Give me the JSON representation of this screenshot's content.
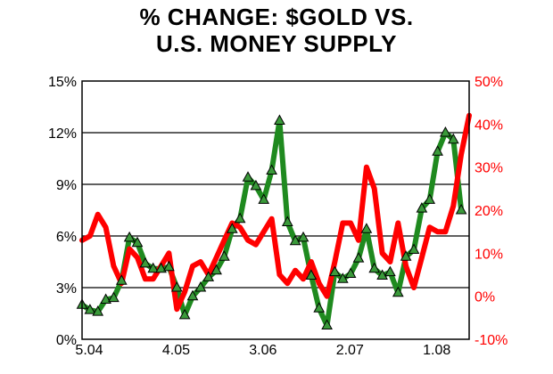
{
  "title_lines": [
    "% CHANGE: $GOLD VS.",
    "U.S. MONEY SUPPLY"
  ],
  "colors": {
    "gold": "#1f8a1f",
    "money": "#ff0000",
    "marker": "#3a9a3a",
    "axis": "#000000",
    "grid": "#000000"
  },
  "chart_data": {
    "type": "line",
    "title": "% CHANGE: $GOLD VS. U.S. MONEY SUPPLY",
    "x_tick_labels": [
      "5.04",
      "4.05",
      "3.06",
      "2.07",
      "1.08"
    ],
    "x_tick_index": [
      0,
      11,
      22,
      33,
      44
    ],
    "x_range": [
      0,
      49
    ],
    "y_left": {
      "ticks": [
        "0%",
        "3%",
        "6%",
        "9%",
        "12%",
        "15%"
      ],
      "range": [
        0,
        15
      ]
    },
    "y_right": {
      "ticks": [
        "-10%",
        "0%",
        "10%",
        "20%",
        "30%",
        "40%",
        "50%"
      ],
      "range": [
        -10,
        50
      ]
    },
    "grid": true,
    "series": [
      {
        "axis": "left",
        "values": [
          2.0,
          1.7,
          1.6,
          2.3,
          2.4,
          3.4,
          5.9,
          5.6,
          4.4,
          4.1,
          4.1,
          4.2,
          3.0,
          1.4,
          2.5,
          3.0,
          3.6,
          4.0,
          4.8,
          6.4,
          7.0,
          9.4,
          8.9,
          8.1,
          9.8,
          12.7,
          6.8,
          5.7,
          5.9,
          3.7,
          1.8,
          0.8,
          3.9,
          3.5,
          3.8,
          4.7,
          6.4,
          4.1,
          3.7,
          3.9,
          2.7,
          4.8,
          5.2,
          7.6,
          8.1,
          10.9,
          12.0,
          11.6,
          7.5
        ],
        "markers": true
      },
      {
        "axis": "right",
        "values": [
          13,
          14,
          19,
          16,
          7,
          3,
          11,
          9,
          4,
          4,
          7,
          10,
          -3,
          1,
          7,
          8,
          5,
          9,
          13,
          17,
          16,
          13,
          12,
          15,
          18,
          5,
          3,
          6,
          4,
          8,
          3,
          0,
          8,
          17,
          17,
          13,
          30,
          25,
          10,
          8,
          17,
          7,
          2,
          9,
          16,
          15,
          15,
          21,
          33,
          42
        ],
        "markers": false
      }
    ]
  }
}
